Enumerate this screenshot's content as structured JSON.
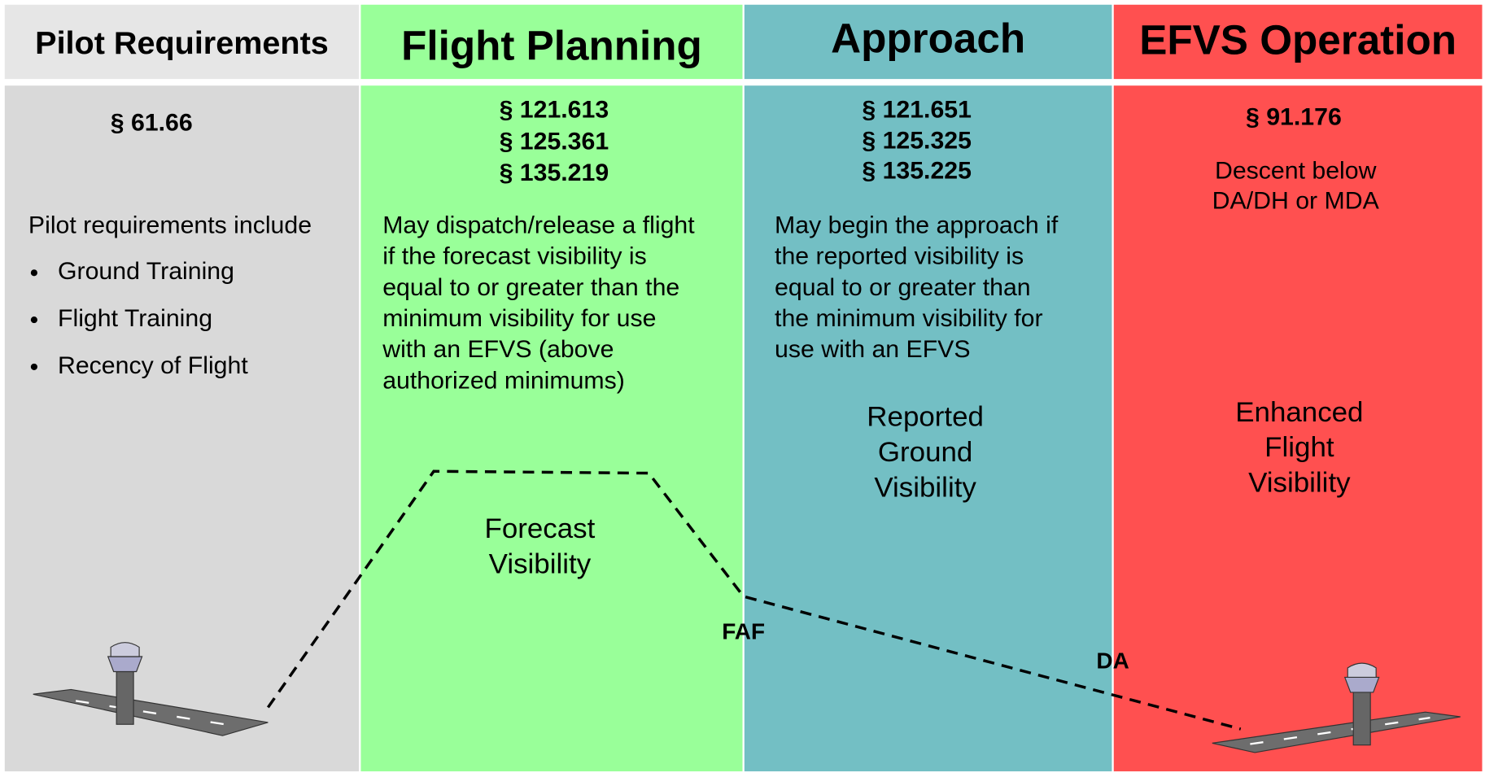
{
  "columns": [
    {
      "header": "Pilot Requirements",
      "sections": [
        "§ 61.66"
      ],
      "body": [
        "Pilot requirements include"
      ],
      "bullets": [
        "Ground Training",
        "Flight Training",
        "Recency of Flight"
      ],
      "visibility": []
    },
    {
      "header": "Flight Planning",
      "sections": [
        "§ 121.613",
        "§ 125.361",
        "§ 135.219"
      ],
      "body": [
        "May dispatch/release a flight",
        "if the forecast visibility is",
        "equal to or greater than the",
        "minimum visibility for use",
        "with an EFVS (above",
        "authorized minimums)"
      ],
      "bullets": [],
      "visibility": [
        "Forecast",
        "Visibility"
      ]
    },
    {
      "header": "Approach",
      "sections": [
        "§ 121.651",
        "§ 125.325",
        "§ 135.225"
      ],
      "body": [
        "May begin the approach if",
        "the reported visibility is",
        "equal to or greater than",
        "the minimum visibility for",
        "use with an EFVS"
      ],
      "bullets": [],
      "visibility": [
        "Reported",
        "Ground",
        "Visibility"
      ]
    },
    {
      "header": "EFVS Operation",
      "sections": [
        "§ 91.176"
      ],
      "body": [
        "Descent below",
        "DA/DH or MDA"
      ],
      "bullets": [],
      "visibility": [
        "Enhanced",
        "Flight",
        "Visibility"
      ]
    }
  ],
  "labels": {
    "faf": "FAF",
    "da": "DA"
  }
}
